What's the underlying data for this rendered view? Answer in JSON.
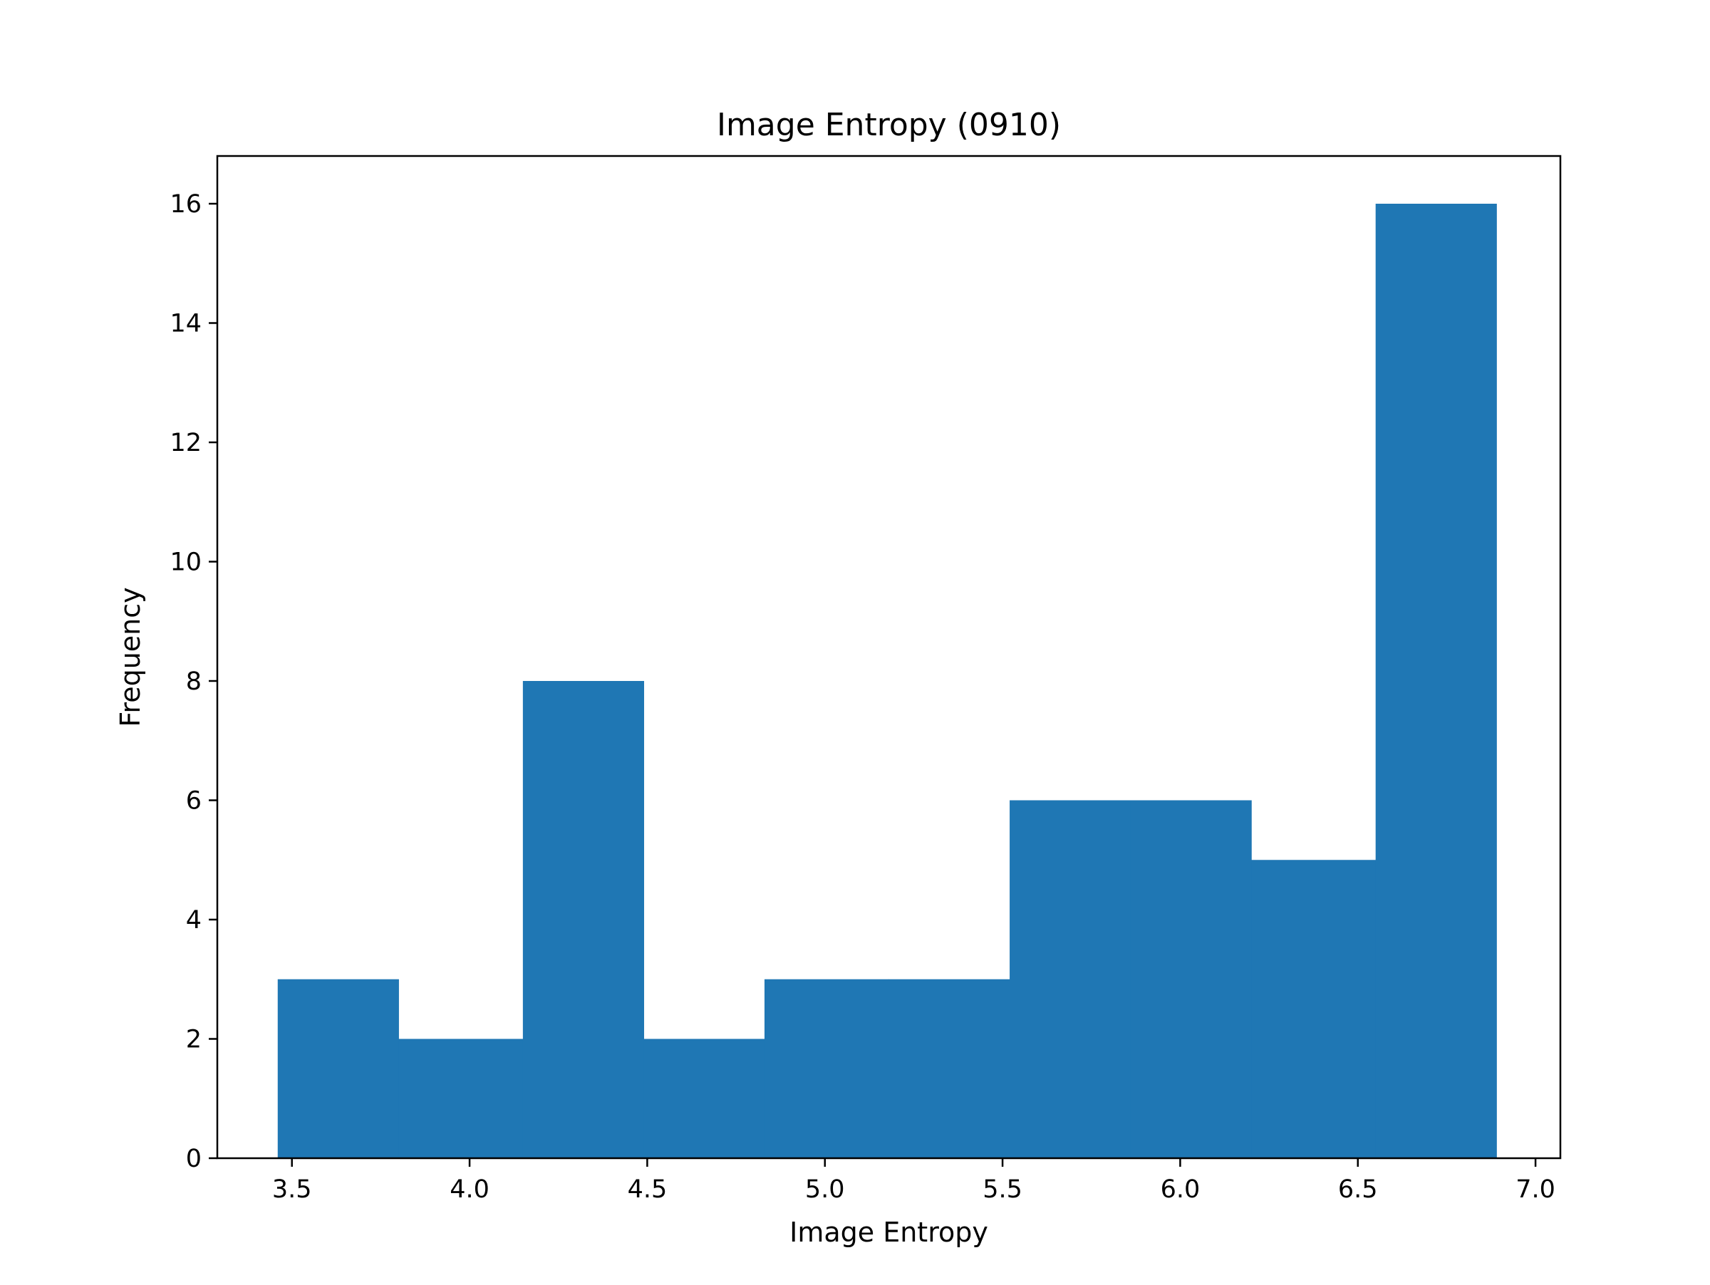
{
  "colors": {
    "bar": "#1f77b4",
    "axes": "#000000",
    "background": "#ffffff"
  },
  "chart_data": {
    "type": "bar",
    "title": "Image Entropy (0910)",
    "xlabel": "Image Entropy",
    "ylabel": "Frequency",
    "grid": false,
    "xlim": [
      3.29,
      7.07
    ],
    "ylim": [
      0,
      16.8
    ],
    "xticks": [
      3.5,
      4.0,
      4.5,
      5.0,
      5.5,
      6.0,
      6.5,
      7.0
    ],
    "xtick_labels": [
      "3.5",
      "4.0",
      "4.5",
      "5.0",
      "5.5",
      "6.0",
      "6.5",
      "7.0"
    ],
    "yticks": [
      0,
      2,
      4,
      6,
      8,
      10,
      12,
      14,
      16
    ],
    "ytick_labels": [
      "0",
      "2",
      "4",
      "6",
      "8",
      "10",
      "12",
      "14",
      "16"
    ],
    "bin_edges": [
      3.46,
      3.8,
      4.15,
      4.49,
      4.83,
      5.18,
      5.52,
      5.86,
      6.2,
      6.55,
      6.89
    ],
    "values": [
      3,
      2,
      8,
      2,
      3,
      3,
      6,
      6,
      5,
      16
    ]
  }
}
